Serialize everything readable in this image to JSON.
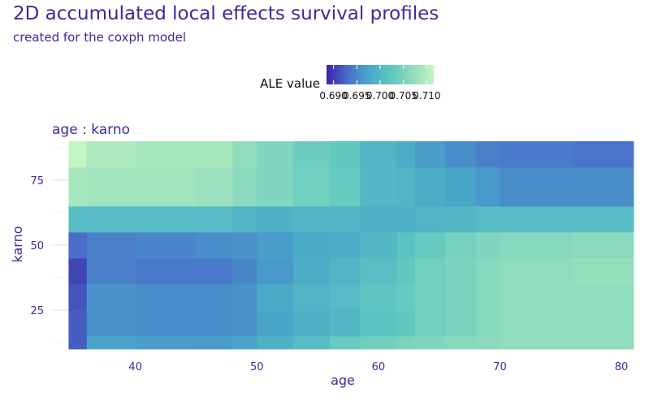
{
  "chart_data": {
    "type": "heatmap",
    "title": "2D accumulated local effects survival profiles",
    "subtitle": "created for the coxph model",
    "facet_label": "age : karno",
    "xlabel": "age",
    "ylabel": "karno",
    "x_ticks": [
      40,
      50,
      60,
      70,
      80
    ],
    "y_ticks": [
      25,
      50,
      75
    ],
    "xlim": [
      33,
      81
    ],
    "ylim": [
      10,
      90
    ],
    "grid": true,
    "legend": {
      "title": "ALE value",
      "position": "top",
      "ticks": [
        "0.690",
        "0.695",
        "0.700",
        "0.705",
        "0.710"
      ],
      "range": [
        0.6885,
        0.7115
      ],
      "colors": [
        "#3a24a6",
        "#4a6fcb",
        "#49a8c9",
        "#5fc7c0",
        "#8fdcbd",
        "#c4f4c0"
      ]
    },
    "x_breaks": [
      34.5,
      36,
      40,
      45,
      48,
      50,
      53,
      56,
      58.5,
      61.5,
      63,
      65.5,
      68,
      70,
      76,
      81
    ],
    "y_breaks": [
      10,
      15,
      25,
      35,
      45,
      55,
      65,
      80,
      90
    ],
    "values": [
      [
        0.692,
        0.6975,
        0.697,
        0.6968,
        0.6975,
        0.699,
        0.701,
        0.703,
        0.704,
        0.705,
        0.7055,
        0.706,
        0.7065,
        0.707,
        0.707,
        0.706
      ],
      [
        0.692,
        0.696,
        0.6955,
        0.6955,
        0.696,
        0.6975,
        0.699,
        0.7,
        0.7015,
        0.7025,
        0.704,
        0.705,
        0.706,
        0.707,
        0.707,
        0.71
      ],
      [
        0.6915,
        0.696,
        0.6955,
        0.6955,
        0.696,
        0.698,
        0.6995,
        0.7005,
        0.702,
        0.703,
        0.704,
        0.705,
        0.706,
        0.707,
        0.707,
        0.71
      ],
      [
        0.6905,
        0.6945,
        0.694,
        0.694,
        0.695,
        0.6965,
        0.6985,
        0.6995,
        0.701,
        0.7025,
        0.704,
        0.705,
        0.706,
        0.707,
        0.7075,
        0.71
      ],
      [
        0.693,
        0.6945,
        0.695,
        0.6955,
        0.696,
        0.697,
        0.698,
        0.6985,
        0.7,
        0.7015,
        0.703,
        0.7045,
        0.7055,
        0.706,
        0.7065,
        0.707
      ],
      [
        0.7005,
        0.7005,
        0.7005,
        0.7005,
        0.6995,
        0.699,
        0.6995,
        0.6995,
        0.699,
        0.699,
        0.6995,
        0.7,
        0.7005,
        0.7005,
        0.7005,
        0.6985
      ],
      [
        0.709,
        0.7085,
        0.7085,
        0.708,
        0.7065,
        0.7055,
        0.704,
        0.703,
        0.7,
        0.6995,
        0.6985,
        0.6975,
        0.6965,
        0.6955,
        0.6955,
        0.692
      ],
      [
        0.7115,
        0.7095,
        0.709,
        0.709,
        0.707,
        0.7055,
        0.7035,
        0.7025,
        0.6995,
        0.6985,
        0.697,
        0.6955,
        0.6945,
        0.694,
        0.6935,
        0.6888
      ]
    ]
  }
}
